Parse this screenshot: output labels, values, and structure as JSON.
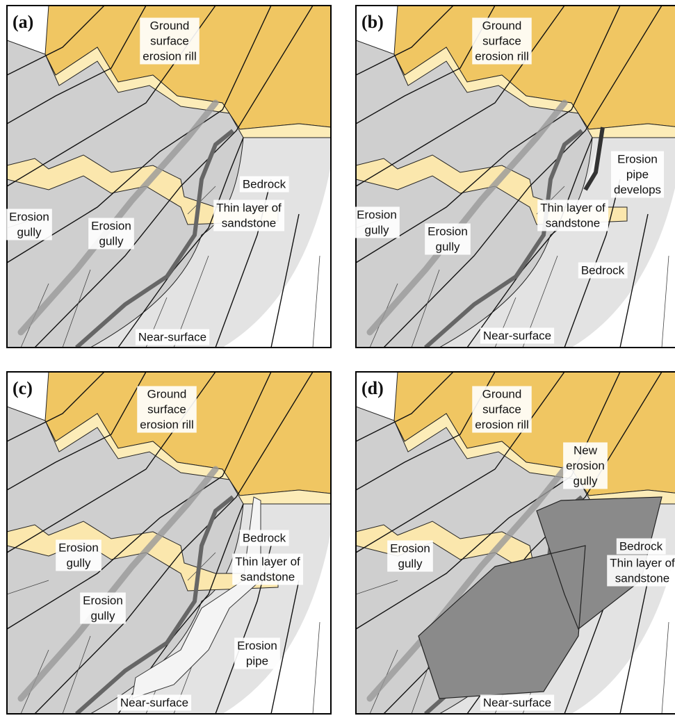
{
  "panels": [
    {
      "label": "(a)",
      "ground": [
        "Ground",
        "surface",
        "erosion rill"
      ],
      "gullies": [
        [
          "Erosion",
          "gully"
        ],
        [
          "Erosion",
          "gully"
        ]
      ],
      "bedrock": "Bedrock",
      "sandstone": [
        "Thin layer of",
        "sandstone"
      ],
      "near_surface": "Near-surface"
    },
    {
      "label": "(b)",
      "ground": [
        "Ground",
        "surface",
        "erosion rill"
      ],
      "pipe": [
        "Erosion",
        "pipe",
        "develops"
      ],
      "gullies": [
        [
          "Erosion",
          "gully"
        ],
        [
          "Erosion",
          "gully"
        ]
      ],
      "sandstone": [
        "Thin layer of",
        "sandstone"
      ],
      "bedrock": "Bedrock",
      "near_surface": "Near-surface"
    },
    {
      "label": "(c)",
      "ground": [
        "Ground",
        "surface",
        "erosion rill"
      ],
      "gullies": [
        [
          "Erosion",
          "gully"
        ],
        [
          "Erosion",
          "gully"
        ]
      ],
      "bedrock": "Bedrock",
      "sandstone": [
        "Thin layer of",
        "sandstone"
      ],
      "pipe": [
        "Erosion",
        "pipe"
      ],
      "near_surface": "Near-surface"
    },
    {
      "label": "(d)",
      "ground": [
        "Ground",
        "surface",
        "erosion rill"
      ],
      "new_gully": [
        "New",
        "erosion",
        "gully"
      ],
      "gullies": [
        [
          "Erosion",
          "gully"
        ]
      ],
      "bedrock": "Bedrock",
      "sandstone": [
        "Thin layer of",
        "sandstone"
      ],
      "near_surface": "Near-surface"
    }
  ]
}
